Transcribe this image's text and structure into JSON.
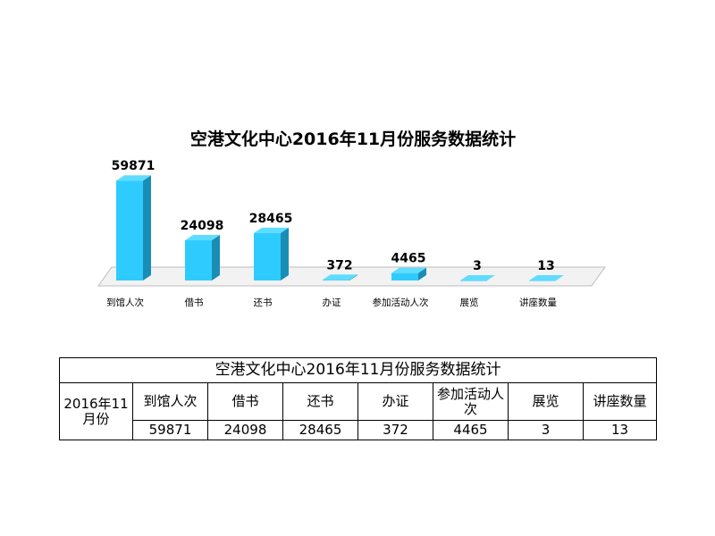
{
  "chart_data": {
    "type": "bar",
    "title": "空港文化中心2016年11月份服务数据统计",
    "categories": [
      "到馆人次",
      "借书",
      "还书",
      "办证",
      "参加活动人次",
      "展览",
      "讲座数量"
    ],
    "values": [
      59871,
      24098,
      28465,
      372,
      4465,
      3,
      13
    ],
    "ylim": [
      0,
      60000
    ],
    "xlabel": "",
    "ylabel": "",
    "grid": false,
    "legend": "none",
    "colors": {
      "bar_front": "#2ecbff",
      "bar_side": "#1a8db5",
      "bar_top": "#5fdcff",
      "floor": "#f2f2f2"
    }
  },
  "table": {
    "title": "空港文化中心2016年11月份服务数据统计",
    "row_label": "2016年11月份",
    "headers": [
      "到馆人次",
      "借书",
      "还书",
      "办证",
      "参加活动人次",
      "展览",
      "讲座数量"
    ],
    "values": [
      "59871",
      "24098",
      "28465",
      "372",
      "4465",
      "3",
      "13"
    ]
  }
}
